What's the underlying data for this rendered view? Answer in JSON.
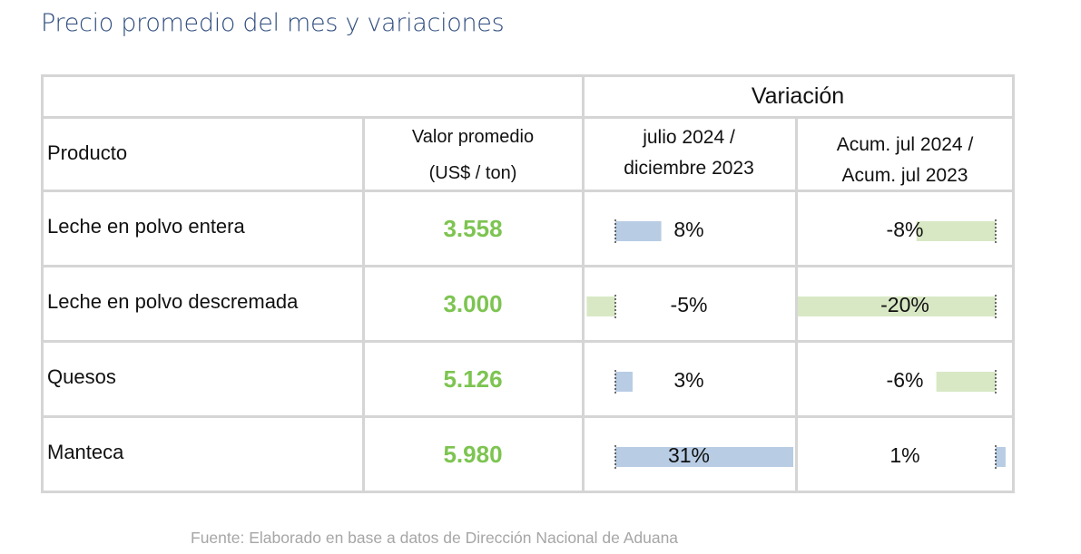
{
  "title": "Precio promedio del mes y variaciones",
  "source": "Fuente: Elaborado en base a datos de Dirección Nacional de Aduana",
  "colors": {
    "title": "#2f4d7e",
    "value": "#7dc451",
    "bar_blue": "#b8cce4",
    "bar_green": "#d8e8c4",
    "grid": "#d5d5d5"
  },
  "header": {
    "variacion": "Variación",
    "producto": "Producto",
    "valor_line1": "Valor promedio",
    "valor_line2": "(US$ / ton)",
    "col3_line1": "julio 2024 /",
    "col3_line2": "diciembre 2023",
    "col4_line1": "Acum. jul 2024 /",
    "col4_line2": "Acum. jul 2023"
  },
  "chart_data": {
    "type": "table",
    "columns": [
      "Producto",
      "Valor promedio (US$ / ton)",
      "julio 2024 / diciembre 2023",
      "Acum. jul 2024 / Acum. jul 2023"
    ],
    "rows": [
      {
        "producto": "Leche en polvo entera",
        "valor": "3.558",
        "var_mes": 8,
        "var_mes_label": "8%",
        "var_acum": -8,
        "var_acum_label": "-8%"
      },
      {
        "producto": "Leche en polvo descremada",
        "valor": "3.000",
        "var_mes": -5,
        "var_mes_label": "-5%",
        "var_acum": -20,
        "var_acum_label": "-20%"
      },
      {
        "producto": "Quesos",
        "valor": "5.126",
        "var_mes": 3,
        "var_mes_label": "3%",
        "var_acum": -6,
        "var_acum_label": "-6%"
      },
      {
        "producto": "Manteca",
        "valor": "5.980",
        "var_mes": 31,
        "var_mes_label": "31%",
        "var_acum": 1,
        "var_acum_label": "1%"
      }
    ]
  }
}
